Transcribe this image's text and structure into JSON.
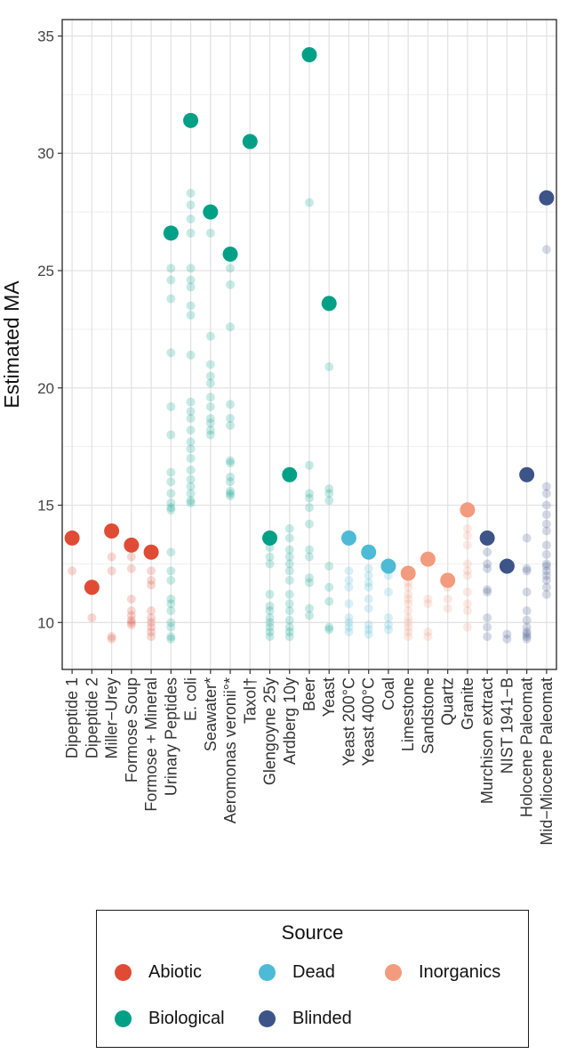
{
  "chart_data": {
    "type": "scatter",
    "ylabel": "Estimated MA",
    "ylim": [
      8,
      35.7
    ],
    "yticks": [
      10,
      15,
      20,
      25,
      30,
      35
    ],
    "grid": true,
    "legend_position": "bottom",
    "categories": [
      "Dipeptide 1",
      "Dipeptide 2",
      "Miller−Urey",
      "Formose Soup",
      "Formose + Mineral",
      "Urinary Peptides",
      "E. coli",
      "Seawater*",
      "Aeromonas veronii°*",
      "Taxol†",
      "Glengoyne 25y",
      "Ardberg 10y",
      "Beer",
      "Yeast",
      "Yeast 200°C",
      "Yeast 400°C",
      "Coal",
      "Limestone",
      "Sandstone",
      "Quartz",
      "Granite",
      "Murchison extract",
      "NIST 1941−B",
      "Holocene Paleomat",
      "Mid−Miocene Paleomat"
    ],
    "sources": [
      "Abiotic",
      "Abiotic",
      "Abiotic",
      "Abiotic",
      "Abiotic",
      "Biological",
      "Biological",
      "Biological",
      "Biological",
      "Biological",
      "Biological",
      "Biological",
      "Biological",
      "Biological",
      "Dead",
      "Dead",
      "Dead",
      "Inorganics",
      "Inorganics",
      "Inorganics",
      "Inorganics",
      "Blinded",
      "Blinded",
      "Blinded",
      "Blinded"
    ],
    "max_values": [
      13.6,
      11.5,
      13.9,
      13.3,
      13.0,
      26.6,
      31.4,
      27.5,
      25.7,
      30.5,
      13.6,
      16.3,
      34.2,
      23.6,
      13.6,
      13.0,
      12.4,
      12.1,
      12.7,
      11.8,
      14.8,
      13.6,
      12.4,
      16.3,
      28.1
    ],
    "points": [
      [
        12.2
      ],
      [
        10.2
      ],
      [
        12.8,
        12.2,
        9.4,
        9.3
      ],
      [
        12.8,
        12.3,
        11.0,
        10.5,
        10.3,
        10.1,
        10.0,
        9.9
      ],
      [
        12.2,
        11.8,
        11.6,
        10.5,
        10.2,
        10.0,
        9.8,
        9.6,
        9.4
      ],
      [
        25.1,
        24.6,
        23.8,
        21.5,
        19.2,
        18.0,
        16.4,
        16.0,
        15.5,
        15.1,
        14.9,
        14.8,
        13.0,
        12.2,
        11.8,
        11.0,
        10.8,
        10.5,
        10.0,
        9.8,
        9.4,
        9.3
      ],
      [
        28.3,
        27.8,
        27.2,
        26.6,
        25.1,
        24.6,
        24.3,
        23.5,
        23.1,
        21.4,
        19.4,
        19.0,
        18.7,
        18.2,
        17.7,
        17.4,
        17.0,
        16.5,
        16.1,
        15.8,
        15.5,
        15.2,
        15.1
      ],
      [
        26.6,
        22.2,
        21.0,
        20.5,
        20.2,
        19.6,
        19.2,
        18.7,
        18.5,
        18.2,
        18.0
      ],
      [
        25.1,
        24.4,
        22.6,
        19.3,
        18.7,
        18.4,
        16.9,
        16.8,
        16.2,
        16.0,
        15.6,
        15.5,
        15.4
      ],
      [],
      [
        13.2,
        12.8,
        12.5,
        11.2,
        10.7,
        10.5,
        10.2,
        10.0,
        9.8,
        9.6,
        9.4
      ],
      [
        14.0,
        13.6,
        13.1,
        12.8,
        12.5,
        12.2,
        11.8,
        11.2,
        10.8,
        10.5,
        10.1,
        9.8,
        9.6,
        9.4
      ],
      [
        27.9,
        16.7,
        15.5,
        15.3,
        14.9,
        14.2,
        13.1,
        12.8,
        11.9,
        11.7,
        10.6,
        10.3
      ],
      [
        20.9,
        15.7,
        15.5,
        15.2,
        12.4,
        11.5,
        10.9,
        9.8,
        9.7
      ],
      [
        12.2,
        11.8,
        11.5,
        10.8,
        10.2,
        10.0,
        9.8,
        9.6
      ],
      [
        12.3,
        12.0,
        11.7,
        11.5,
        11.0,
        10.6,
        9.9,
        9.7,
        9.5
      ],
      [
        12.0,
        11.3,
        10.2,
        9.9,
        9.7
      ],
      [
        12.0,
        11.7,
        11.5,
        11.2,
        11.0,
        10.8,
        10.5,
        10.2,
        10.0,
        9.8,
        9.6,
        9.4
      ],
      [
        11.0,
        10.8,
        9.6,
        9.4
      ],
      [
        11.5,
        11.0,
        10.6
      ],
      [
        14.0,
        13.7,
        13.3,
        12.5,
        12.2,
        12.0,
        11.3,
        10.8,
        10.5,
        9.8
      ],
      [
        13.0,
        12.5,
        12.3,
        11.4,
        11.3,
        10.2,
        9.8,
        9.4
      ],
      [
        9.5,
        9.3
      ],
      [
        13.6,
        12.3,
        12.2,
        11.3,
        10.5,
        10.1,
        9.8,
        9.6,
        9.5,
        9.4,
        9.3
      ],
      [
        25.9,
        15.8,
        15.5,
        15.0,
        14.6,
        14.2,
        13.9,
        13.3,
        12.9,
        12.5,
        12.4,
        12.2,
        12.0,
        11.8,
        11.5,
        11.2
      ]
    ],
    "colors": {
      "Abiotic": "#e04b35",
      "Biological": "#00a087",
      "Dead": "#4dbbd5",
      "Inorganics": "#f39b7f",
      "Blinded": "#3c5488"
    }
  },
  "legend": {
    "title": "Source",
    "items": [
      {
        "label": "Abiotic",
        "color": "#e04b35"
      },
      {
        "label": "Dead",
        "color": "#4dbbd5"
      },
      {
        "label": "Inorganics",
        "color": "#f39b7f"
      },
      {
        "label": "Biological",
        "color": "#00a087"
      },
      {
        "label": "Blinded",
        "color": "#3c5488"
      }
    ]
  }
}
